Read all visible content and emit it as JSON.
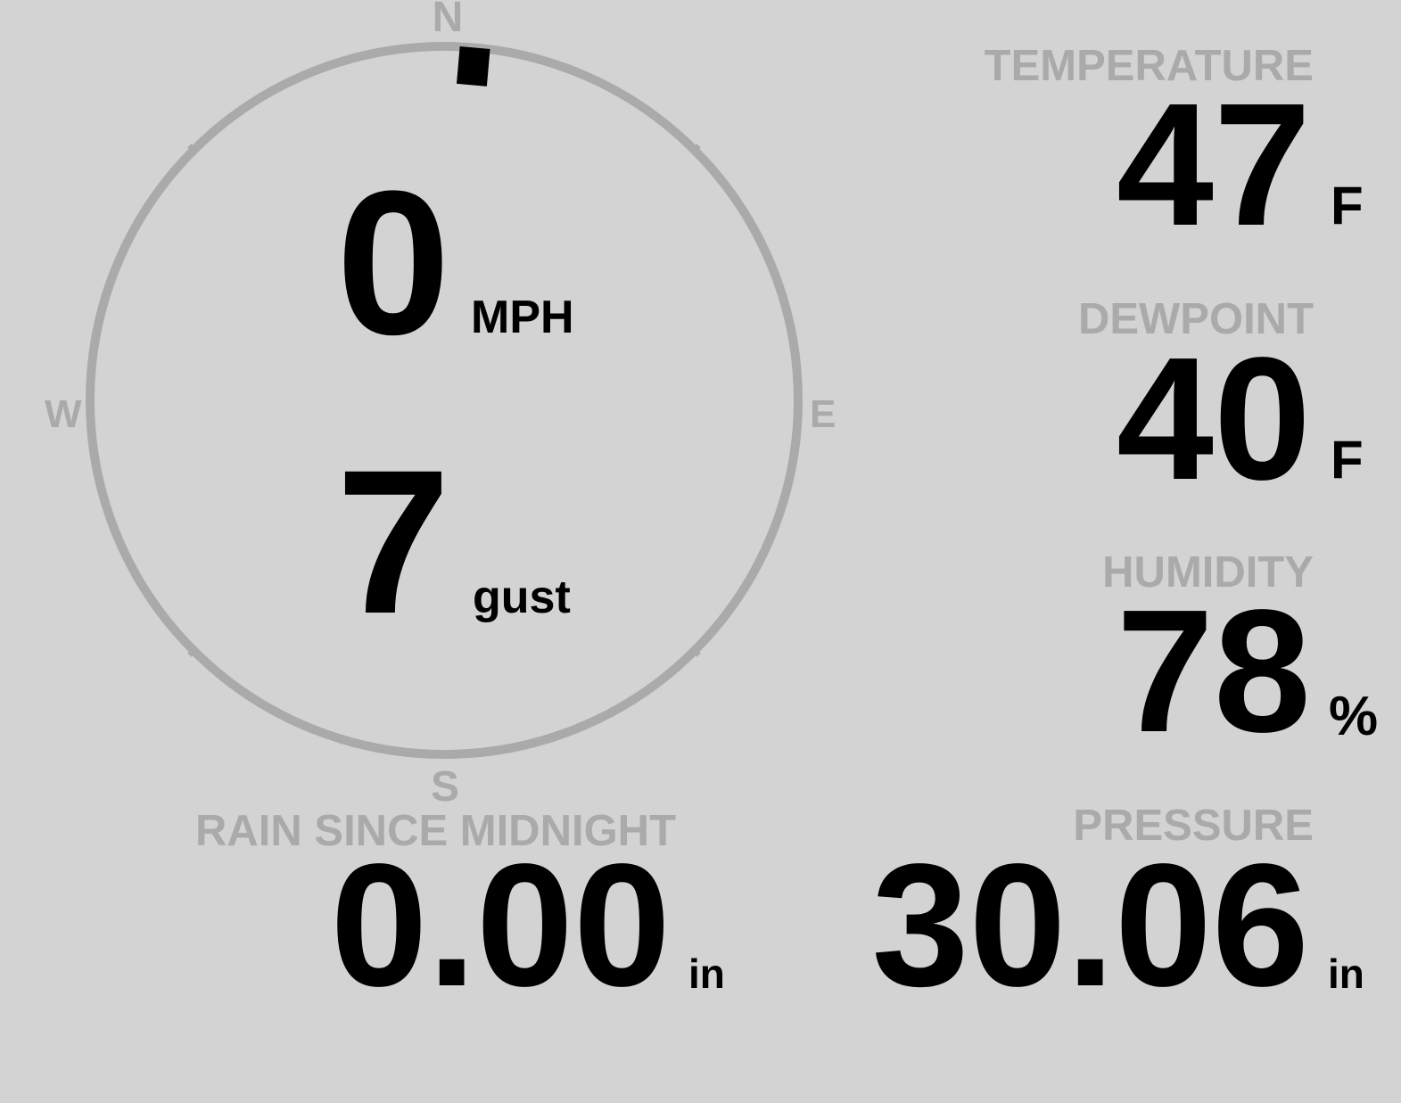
{
  "colors": {
    "background": "#d3d3d3",
    "label": "#aaaaaa",
    "value": "#000000",
    "compass_ring": "#aaaaaa",
    "wind_marker": "#000000"
  },
  "wind": {
    "compass": {
      "north": "N",
      "south": "S",
      "east": "E",
      "west": "W"
    },
    "direction_degrees": 5,
    "speed": "0",
    "speed_unit": "MPH",
    "gust": "7",
    "gust_label": "gust"
  },
  "temperature": {
    "label": "TEMPERATURE",
    "value": "47",
    "unit": "F"
  },
  "dewpoint": {
    "label": "DEWPOINT",
    "value": "40",
    "unit": "F"
  },
  "humidity": {
    "label": "HUMIDITY",
    "value": "78",
    "unit": "%"
  },
  "rain": {
    "label": "RAIN SINCE MIDNIGHT",
    "value": "0.00",
    "unit": "in"
  },
  "pressure": {
    "label": "PRESSURE",
    "value": "30.06",
    "unit": "in"
  }
}
